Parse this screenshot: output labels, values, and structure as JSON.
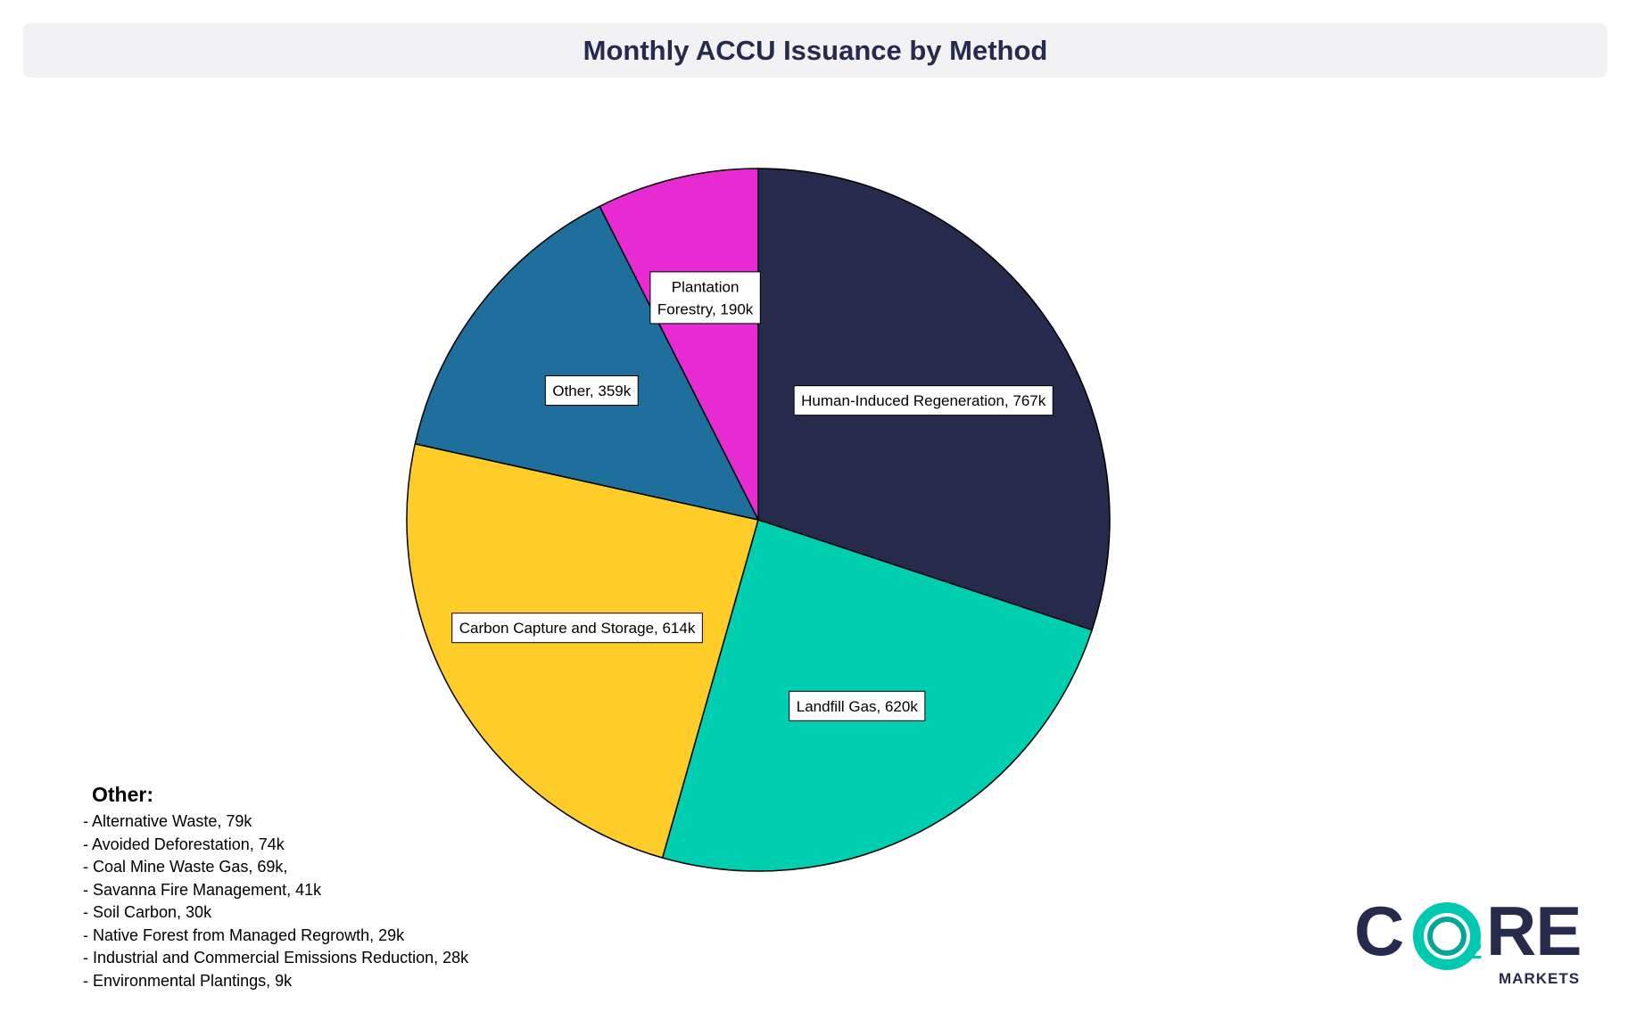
{
  "chart_data": {
    "type": "pie",
    "title": "Monthly ACCU Issuance by Method",
    "start_angle_deg": 0,
    "direction": "clockwise",
    "slices": [
      {
        "name": "Human-Induced Regeneration",
        "value": 767,
        "label": "Human-Induced Regeneration, 767k",
        "color": "#262a4d"
      },
      {
        "name": "Landfill Gas",
        "value": 620,
        "label": "Landfill Gas, 620k",
        "color": "#00ceb1"
      },
      {
        "name": "Carbon Capture and Storage",
        "value": 614,
        "label": "Carbon Capture and Storage, 614k",
        "color": "#fecd2a"
      },
      {
        "name": "Other",
        "value": 359,
        "label": "Other, 359k",
        "color": "#1e6f9b"
      },
      {
        "name": "Plantation Forestry",
        "value": 190,
        "label": "Plantation Forestry, 190k",
        "label_lines": [
          "Plantation",
          "Forestry, 190k"
        ],
        "color": "#e62bd3"
      }
    ],
    "units": "k"
  },
  "other_breakdown": {
    "heading": "Other:",
    "items": [
      "- Alternative Waste, 79k",
      "- Avoided Deforestation, 74k",
      "- Coal Mine Waste Gas, 69k,",
      "- Savanna Fire Management, 41k",
      "- Soil Carbon, 30k",
      "- Native Forest from Managed Regrowth, 29k",
      "- Industrial and Commercial Emissions Reduction, 28k",
      "- Environmental Plantings, 9k"
    ]
  },
  "logo": {
    "letter_c": "C",
    "letters_re": "RE",
    "subscript": "2",
    "sub_text": "MARKETS",
    "primary_color": "#262a4d",
    "accent_color": "#00c9b1"
  }
}
